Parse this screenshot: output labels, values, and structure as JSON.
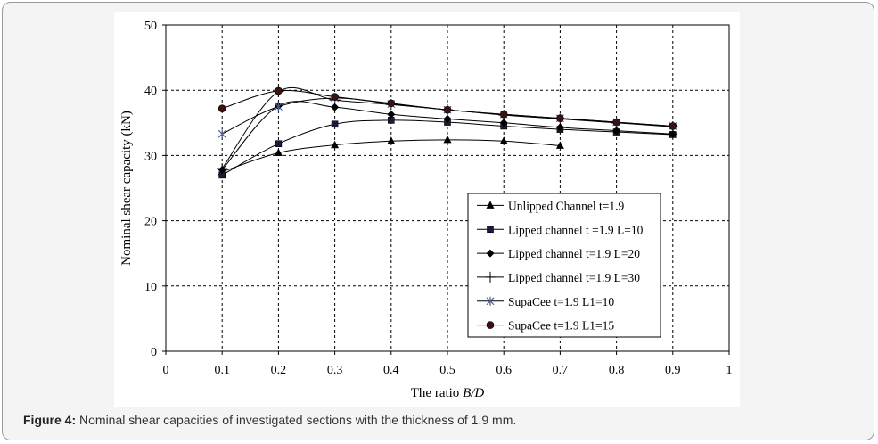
{
  "caption": {
    "label": "Figure 4:",
    "text": "Nominal shear capacities of investigated sections with the thickness of 1.9 mm."
  },
  "chart_data": {
    "type": "line",
    "xlabel_prefix": "The ratio ",
    "xlabel_var": "B/D",
    "ylabel": "Nominal shear capacity (kN)",
    "xlim": [
      0,
      1
    ],
    "ylim": [
      0,
      50
    ],
    "xticks": [
      "0",
      "0.1",
      "0.2",
      "0.3",
      "0.4",
      "0.5",
      "0.6",
      "0.7",
      "0.8",
      "0.9",
      "1"
    ],
    "yticks": [
      "0",
      "10",
      "20",
      "30",
      "40",
      "50"
    ],
    "grid": true,
    "legend_position": "bottom-right",
    "series": [
      {
        "name": "Unlipped Channel t=1.9",
        "marker": "triangle",
        "x": [
          0.1,
          0.2,
          0.3,
          0.4,
          0.5,
          0.6,
          0.7
        ],
        "y": [
          27.5,
          30.4,
          31.6,
          32.2,
          32.4,
          32.2,
          31.5
        ]
      },
      {
        "name": "Lipped channel t =1.9 L=10",
        "marker": "square",
        "x": [
          0.1,
          0.2,
          0.3,
          0.4,
          0.5,
          0.6,
          0.7,
          0.8,
          0.9
        ],
        "y": [
          27.0,
          31.8,
          34.8,
          35.4,
          35.1,
          34.5,
          34.0,
          33.6,
          33.2
        ]
      },
      {
        "name": "Lipped channel t=1.9 L=20",
        "marker": "diamond",
        "x": [
          0.1,
          0.2,
          0.3,
          0.4,
          0.5,
          0.6,
          0.7,
          0.8,
          0.9
        ],
        "y": [
          27.8,
          37.6,
          37.4,
          36.3,
          35.6,
          35.0,
          34.3,
          33.8,
          33.3
        ]
      },
      {
        "name": "Lipped channel t=1.9 L=30",
        "marker": "plus",
        "x": [
          0.1,
          0.2,
          0.3,
          0.4,
          0.5,
          0.6,
          0.7,
          0.8,
          0.9
        ],
        "y": [
          28.0,
          39.8,
          38.5,
          37.8,
          37.0,
          36.2,
          35.6,
          35.0,
          34.4
        ]
      },
      {
        "name": "SupaCee t=1.9 L1=10",
        "marker": "star",
        "x": [
          0.1,
          0.2,
          0.3,
          0.4,
          0.5,
          0.6,
          0.7,
          0.8,
          0.9
        ],
        "y": [
          33.3,
          37.5,
          38.8,
          37.9,
          37.0,
          36.3,
          35.7,
          35.1,
          34.5
        ]
      },
      {
        "name": "SupaCee t=1.9 L1=15",
        "marker": "circle",
        "x": [
          0.1,
          0.2,
          0.3,
          0.4,
          0.5,
          0.6,
          0.7,
          0.8,
          0.9
        ],
        "y": [
          37.2,
          39.9,
          39.0,
          38.0,
          37.0,
          36.3,
          35.7,
          35.1,
          34.5
        ]
      }
    ]
  }
}
